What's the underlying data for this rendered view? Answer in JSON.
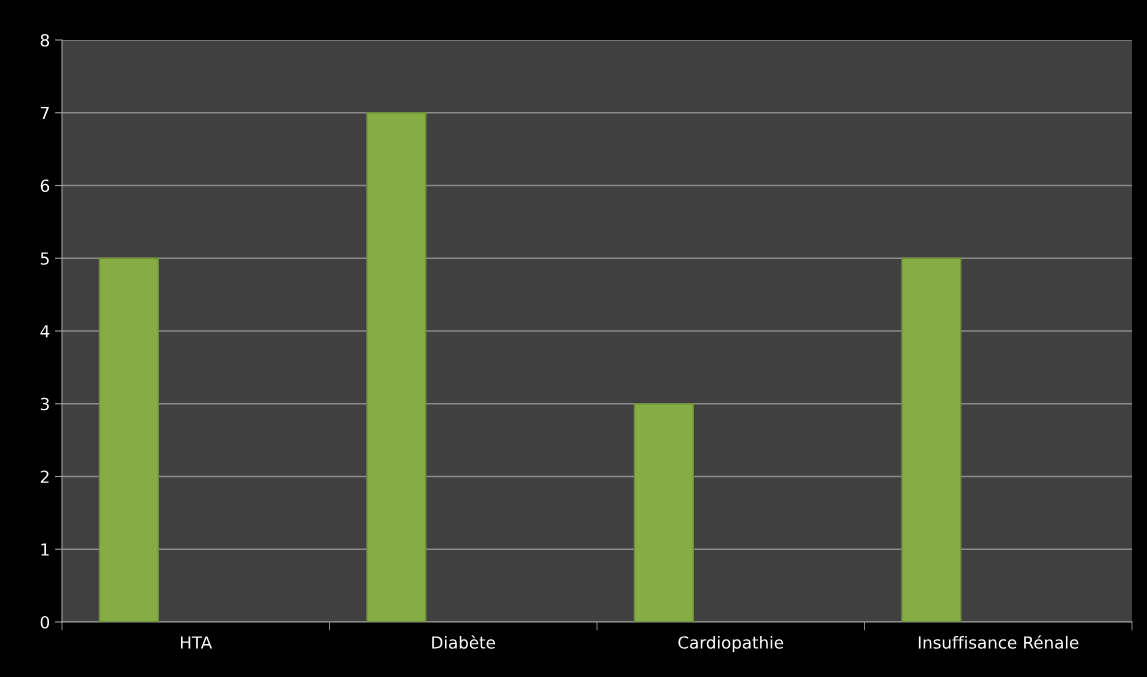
{
  "chart_data": {
    "type": "bar",
    "categories": [
      "HTA",
      "Diabète",
      "Cardiopathie",
      "Insuffisance Rénale"
    ],
    "values": [
      5,
      7,
      3,
      5
    ],
    "color": "#86ac46",
    "ylim": [
      0,
      8
    ],
    "yticks": [
      0,
      1,
      2,
      3,
      4,
      5,
      6,
      7,
      8
    ],
    "grid": "y",
    "legend": false
  }
}
